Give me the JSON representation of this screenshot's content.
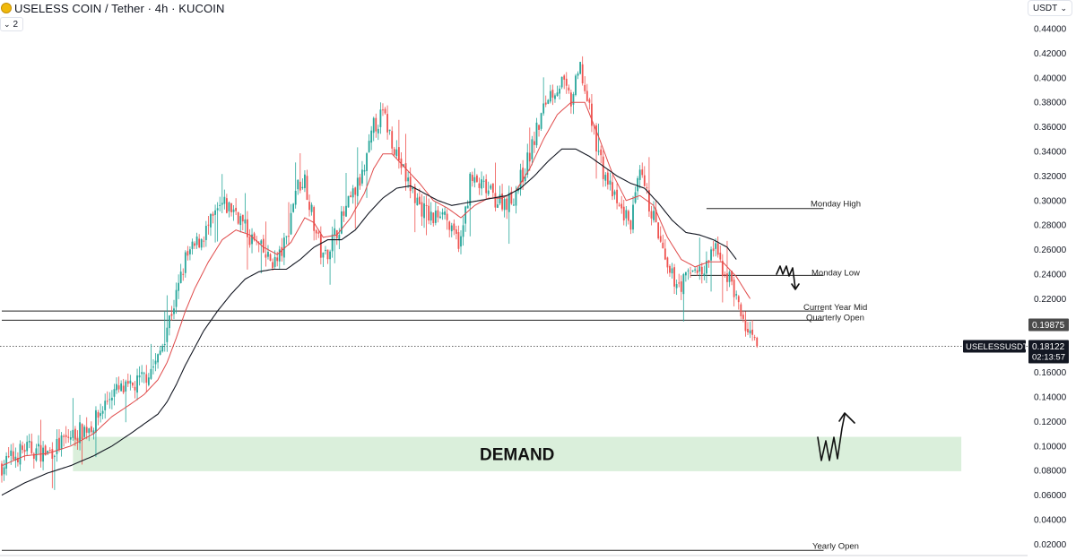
{
  "header": {
    "title": "USELESS COIN / Tether · 4h · KUCOIN",
    "indicator_count": "2",
    "currency_select": "USDT"
  },
  "colors": {
    "up": "#26a69a",
    "down": "#ef5350",
    "ema_fast": "#e04a4a",
    "ema_slow": "#131722",
    "demand_zone": "#d3ecd5",
    "price_tag": "#131722"
  },
  "chart_data": {
    "type": "candlestick",
    "symbol": "USELESSUSDT",
    "interval": "4h",
    "exchange": "KUCOIN",
    "ylim": [
      0.01,
      0.45
    ],
    "y_ticks": [
      "0.44000",
      "0.42000",
      "0.40000",
      "0.38000",
      "0.36000",
      "0.34000",
      "0.32000",
      "0.30000",
      "0.28000",
      "0.26000",
      "0.24000",
      "0.22000",
      "0.16000",
      "0.14000",
      "0.12000",
      "0.10000",
      "0.08000",
      "0.06000",
      "0.04000",
      "0.02000"
    ],
    "last_price": {
      "label": "USELESSUSDT",
      "value": "0.18122",
      "countdown": "02:13:57",
      "price": 0.18122
    },
    "level_tag": {
      "value": "0.19875",
      "price": 0.19875
    },
    "path_anchors": [
      [
        0,
        0.084
      ],
      [
        10,
        0.098
      ],
      [
        20,
        0.094
      ],
      [
        30,
        0.108
      ],
      [
        40,
        0.118
      ],
      [
        48,
        0.144
      ],
      [
        56,
        0.146
      ],
      [
        62,
        0.156
      ],
      [
        68,
        0.17
      ],
      [
        72,
        0.198
      ],
      [
        76,
        0.222
      ],
      [
        80,
        0.252
      ],
      [
        84,
        0.262
      ],
      [
        90,
        0.278
      ],
      [
        96,
        0.296
      ],
      [
        102,
        0.292
      ],
      [
        108,
        0.27
      ],
      [
        112,
        0.262
      ],
      [
        116,
        0.252
      ],
      [
        120,
        0.25
      ],
      [
        124,
        0.268
      ],
      [
        128,
        0.31
      ],
      [
        132,
        0.318
      ],
      [
        136,
        0.28
      ],
      [
        140,
        0.252
      ],
      [
        146,
        0.276
      ],
      [
        152,
        0.3
      ],
      [
        158,
        0.324
      ],
      [
        162,
        0.36
      ],
      [
        166,
        0.37
      ],
      [
        170,
        0.35
      ],
      [
        176,
        0.318
      ],
      [
        182,
        0.296
      ],
      [
        188,
        0.284
      ],
      [
        192,
        0.296
      ],
      [
        196,
        0.272
      ],
      [
        200,
        0.266
      ],
      [
        204,
        0.316
      ],
      [
        210,
        0.31
      ],
      [
        216,
        0.3
      ],
      [
        222,
        0.3
      ],
      [
        228,
        0.326
      ],
      [
        232,
        0.35
      ],
      [
        238,
        0.386
      ],
      [
        244,
        0.396
      ],
      [
        248,
        0.38
      ],
      [
        252,
        0.408
      ],
      [
        256,
        0.372
      ],
      [
        262,
        0.324
      ],
      [
        268,
        0.296
      ],
      [
        274,
        0.282
      ],
      [
        278,
        0.32
      ],
      [
        284,
        0.286
      ],
      [
        290,
        0.24
      ],
      [
        296,
        0.232
      ],
      [
        302,
        0.246
      ],
      [
        306,
        0.24
      ],
      [
        310,
        0.262
      ],
      [
        314,
        0.244
      ],
      [
        318,
        0.234
      ],
      [
        322,
        0.206
      ],
      [
        326,
        0.188
      ],
      [
        329,
        0.181
      ]
    ],
    "ema_fast_anchors": [
      [
        0,
        0.084
      ],
      [
        10,
        0.092
      ],
      [
        20,
        0.094
      ],
      [
        30,
        0.1
      ],
      [
        40,
        0.11
      ],
      [
        48,
        0.124
      ],
      [
        56,
        0.134
      ],
      [
        62,
        0.142
      ],
      [
        68,
        0.154
      ],
      [
        72,
        0.168
      ],
      [
        76,
        0.188
      ],
      [
        80,
        0.21
      ],
      [
        84,
        0.228
      ],
      [
        90,
        0.25
      ],
      [
        96,
        0.268
      ],
      [
        102,
        0.276
      ],
      [
        108,
        0.272
      ],
      [
        114,
        0.262
      ],
      [
        120,
        0.256
      ],
      [
        126,
        0.266
      ],
      [
        132,
        0.286
      ],
      [
        136,
        0.282
      ],
      [
        140,
        0.27
      ],
      [
        146,
        0.272
      ],
      [
        152,
        0.286
      ],
      [
        158,
        0.306
      ],
      [
        162,
        0.326
      ],
      [
        166,
        0.338
      ],
      [
        170,
        0.338
      ],
      [
        176,
        0.326
      ],
      [
        182,
        0.314
      ],
      [
        188,
        0.3
      ],
      [
        194,
        0.294
      ],
      [
        200,
        0.286
      ],
      [
        206,
        0.296
      ],
      [
        212,
        0.302
      ],
      [
        218,
        0.302
      ],
      [
        224,
        0.308
      ],
      [
        230,
        0.326
      ],
      [
        236,
        0.35
      ],
      [
        242,
        0.37
      ],
      [
        248,
        0.38
      ],
      [
        254,
        0.38
      ],
      [
        260,
        0.352
      ],
      [
        266,
        0.322
      ],
      [
        272,
        0.3
      ],
      [
        278,
        0.304
      ],
      [
        284,
        0.296
      ],
      [
        290,
        0.27
      ],
      [
        296,
        0.252
      ],
      [
        302,
        0.246
      ],
      [
        308,
        0.25
      ],
      [
        314,
        0.25
      ],
      [
        320,
        0.238
      ],
      [
        326,
        0.22
      ]
    ],
    "ema_slow_anchors": [
      [
        0,
        0.06
      ],
      [
        10,
        0.07
      ],
      [
        20,
        0.078
      ],
      [
        30,
        0.084
      ],
      [
        40,
        0.092
      ],
      [
        48,
        0.1
      ],
      [
        56,
        0.11
      ],
      [
        62,
        0.118
      ],
      [
        68,
        0.126
      ],
      [
        72,
        0.136
      ],
      [
        76,
        0.15
      ],
      [
        80,
        0.166
      ],
      [
        84,
        0.18
      ],
      [
        88,
        0.194
      ],
      [
        94,
        0.21
      ],
      [
        100,
        0.224
      ],
      [
        106,
        0.236
      ],
      [
        112,
        0.242
      ],
      [
        118,
        0.244
      ],
      [
        124,
        0.244
      ],
      [
        130,
        0.252
      ],
      [
        136,
        0.262
      ],
      [
        142,
        0.268
      ],
      [
        148,
        0.268
      ],
      [
        154,
        0.276
      ],
      [
        160,
        0.29
      ],
      [
        166,
        0.302
      ],
      [
        172,
        0.31
      ],
      [
        178,
        0.312
      ],
      [
        184,
        0.306
      ],
      [
        190,
        0.3
      ],
      [
        196,
        0.296
      ],
      [
        202,
        0.298
      ],
      [
        208,
        0.3
      ],
      [
        214,
        0.302
      ],
      [
        220,
        0.304
      ],
      [
        226,
        0.31
      ],
      [
        232,
        0.32
      ],
      [
        238,
        0.332
      ],
      [
        244,
        0.342
      ],
      [
        250,
        0.342
      ],
      [
        256,
        0.336
      ],
      [
        262,
        0.328
      ],
      [
        268,
        0.32
      ],
      [
        274,
        0.314
      ],
      [
        280,
        0.31
      ],
      [
        286,
        0.298
      ],
      [
        292,
        0.284
      ],
      [
        298,
        0.274
      ],
      [
        304,
        0.272
      ],
      [
        310,
        0.268
      ],
      [
        316,
        0.262
      ],
      [
        320,
        0.252
      ]
    ],
    "levels": [
      {
        "name": "monday-high",
        "label": "Monday High",
        "price": 0.2935,
        "x_from": 307,
        "x_to": 358
      },
      {
        "name": "monday-low",
        "label": "Monday Low",
        "price": 0.239,
        "x_from": 300,
        "x_to": 358
      },
      {
        "name": "current-year-mid",
        "label": "Current Year Mid",
        "price": 0.21,
        "x_from": 0,
        "x_to": 358
      },
      {
        "name": "quarterly-open",
        "label": "Quarterly Open",
        "price": 0.2025,
        "x_from": 0,
        "x_to": 358
      },
      {
        "name": "yearly-open",
        "label": "Yearly Open",
        "price": 0.015,
        "x_from": 0,
        "x_to": 358
      }
    ],
    "zone": {
      "label": "DEMAND",
      "top": 0.1075,
      "bottom": 0.0795,
      "x_from": 31,
      "x_to": 418
    },
    "annotations": [
      {
        "name": "bearish-squiggle-arrow",
        "shape": "zigzag-down-arrow",
        "near_price": 0.24
      },
      {
        "name": "bullish-squiggle-arrow",
        "shape": "zigzag-up-arrow",
        "near_price": 0.1
      }
    ],
    "grid": false,
    "legend": "none"
  }
}
